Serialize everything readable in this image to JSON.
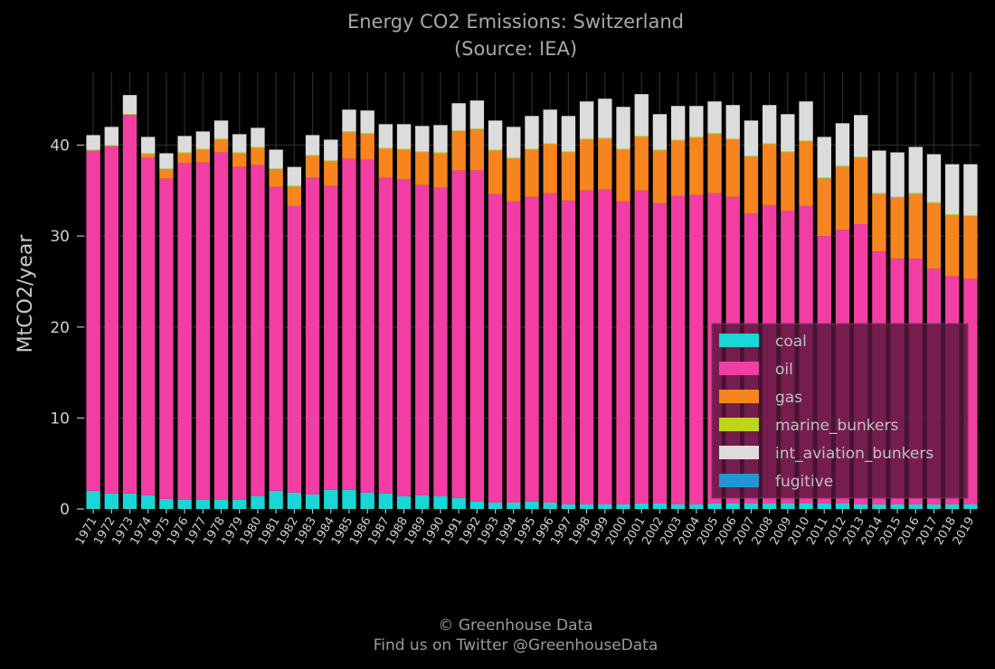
{
  "chart_data": {
    "type": "bar",
    "stacked": true,
    "title": "Energy CO2 Emissions: Switzerland",
    "subtitle": "(Source: IEA)",
    "xlabel": "",
    "ylabel": "MtCO2/year",
    "ylim": [
      0,
      48
    ],
    "yticks": [
      0,
      10,
      20,
      30,
      40
    ],
    "grid": true,
    "legend_position": "lower-right",
    "categories": [
      "1971",
      "1972",
      "1973",
      "1974",
      "1975",
      "1976",
      "1977",
      "1978",
      "1979",
      "1980",
      "1981",
      "1982",
      "1983",
      "1984",
      "1985",
      "1986",
      "1987",
      "1988",
      "1989",
      "1990",
      "1991",
      "1992",
      "1993",
      "1994",
      "1995",
      "1996",
      "1997",
      "1998",
      "1999",
      "2000",
      "2001",
      "2002",
      "2003",
      "2004",
      "2005",
      "2006",
      "2007",
      "2008",
      "2009",
      "2010",
      "2011",
      "2012",
      "2013",
      "2014",
      "2015",
      "2016",
      "2017",
      "2018",
      "2019"
    ],
    "series": [
      {
        "name": "coal",
        "color": "#1ad6d6",
        "values": [
          2.0,
          1.7,
          1.7,
          1.5,
          1.1,
          1.0,
          1.0,
          1.0,
          1.0,
          1.4,
          2.0,
          1.8,
          1.6,
          2.1,
          2.1,
          1.8,
          1.7,
          1.4,
          1.5,
          1.4,
          1.2,
          0.8,
          0.7,
          0.7,
          0.8,
          0.7,
          0.5,
          0.5,
          0.5,
          0.5,
          0.6,
          0.6,
          0.5,
          0.5,
          0.6,
          0.6,
          0.6,
          0.6,
          0.6,
          0.6,
          0.6,
          0.6,
          0.5,
          0.5,
          0.5,
          0.5,
          0.5,
          0.5,
          0.5
        ]
      },
      {
        "name": "oil",
        "color": "#f23ea3",
        "values": [
          37.4,
          38.2,
          41.6,
          37.1,
          35.2,
          37.0,
          37.1,
          38.2,
          36.6,
          36.4,
          33.4,
          31.5,
          34.8,
          33.4,
          36.4,
          36.6,
          34.7,
          34.8,
          34.1,
          33.9,
          36.0,
          36.4,
          33.9,
          33.1,
          33.5,
          34.0,
          33.4,
          34.5,
          34.6,
          33.3,
          34.4,
          33.0,
          33.9,
          34.0,
          34.1,
          33.7,
          31.9,
          32.8,
          32.2,
          32.7,
          29.4,
          30.1,
          30.8,
          27.8,
          27.0,
          27.0,
          25.9,
          25.1,
          24.8
        ]
      },
      {
        "name": "gas",
        "color": "#f7851f",
        "values": [
          0.0,
          0.0,
          0.0,
          0.4,
          1.0,
          1.1,
          1.4,
          1.4,
          1.5,
          1.9,
          1.9,
          2.1,
          2.4,
          2.7,
          2.9,
          2.8,
          3.2,
          3.3,
          3.6,
          3.8,
          4.3,
          4.5,
          4.8,
          4.7,
          5.2,
          5.4,
          5.3,
          5.6,
          5.6,
          5.7,
          5.9,
          5.8,
          6.1,
          6.3,
          6.5,
          6.3,
          6.2,
          6.7,
          6.4,
          7.1,
          6.3,
          6.9,
          7.3,
          6.3,
          6.7,
          7.1,
          7.2,
          6.7,
          6.9
        ]
      },
      {
        "name": "marine_bunkers",
        "color": "#bcd61e",
        "values": [
          0.1,
          0.1,
          0.1,
          0.1,
          0.1,
          0.1,
          0.1,
          0.1,
          0.1,
          0.1,
          0.1,
          0.1,
          0.1,
          0.1,
          0.1,
          0.1,
          0.1,
          0.1,
          0.1,
          0.1,
          0.1,
          0.1,
          0.1,
          0.1,
          0.1,
          0.1,
          0.1,
          0.1,
          0.1,
          0.1,
          0.1,
          0.1,
          0.1,
          0.1,
          0.1,
          0.1,
          0.1,
          0.1,
          0.1,
          0.1,
          0.1,
          0.1,
          0.1,
          0.1,
          0.1,
          0.1,
          0.1,
          0.1,
          0.1
        ]
      },
      {
        "name": "int_aviation_bunkers",
        "color": "#dcdcdc",
        "values": [
          1.6,
          2.0,
          2.1,
          1.8,
          1.7,
          1.8,
          1.9,
          2.0,
          2.0,
          2.1,
          2.1,
          2.1,
          2.2,
          2.3,
          2.4,
          2.5,
          2.6,
          2.7,
          2.8,
          3.0,
          3.0,
          3.1,
          3.2,
          3.4,
          3.6,
          3.7,
          3.9,
          4.1,
          4.3,
          4.6,
          4.6,
          3.9,
          3.7,
          3.4,
          3.5,
          3.7,
          3.9,
          4.2,
          4.1,
          4.3,
          4.5,
          4.7,
          4.6,
          4.7,
          4.9,
          5.1,
          5.3,
          5.5,
          5.6
        ]
      },
      {
        "name": "fugitive",
        "color": "#2196d3",
        "values": [
          0.0,
          0.0,
          0.0,
          0.0,
          0.0,
          0.0,
          0.0,
          0.0,
          0.0,
          0.0,
          0.0,
          0.0,
          0.0,
          0.0,
          0.0,
          0.0,
          0.0,
          0.0,
          0.0,
          0.0,
          0.0,
          0.0,
          0.0,
          0.0,
          0.0,
          0.0,
          0.0,
          0.0,
          0.0,
          0.0,
          0.0,
          0.0,
          0.0,
          0.0,
          0.0,
          0.0,
          0.0,
          0.0,
          0.0,
          0.0,
          0.0,
          0.0,
          0.0,
          0.0,
          0.0,
          0.0,
          0.0,
          0.0,
          0.0
        ]
      }
    ]
  },
  "footer": {
    "copyright": "© Greenhouse Data",
    "twitter": "Find us on Twitter @GreenhouseData"
  }
}
